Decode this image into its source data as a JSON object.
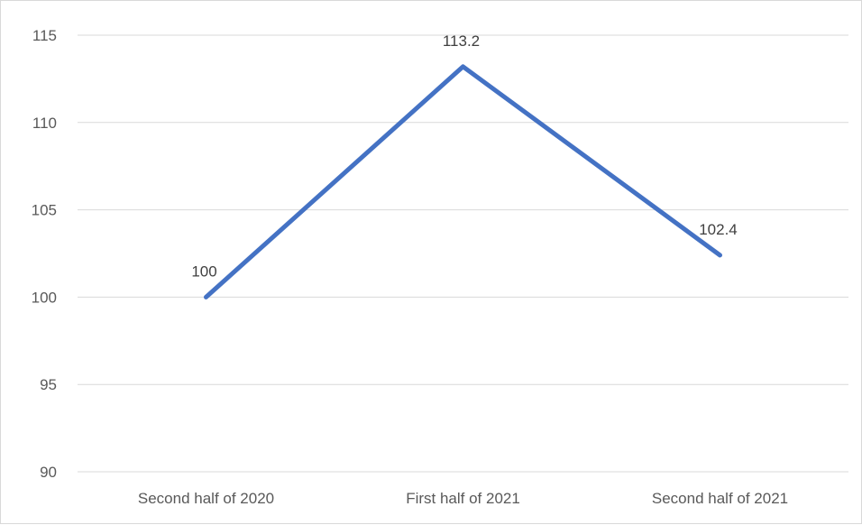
{
  "chart_data": {
    "type": "line",
    "title": "",
    "xlabel": "",
    "ylabel": "",
    "categories": [
      "Second half of 2020",
      "First half of 2021",
      "Second half of 2021"
    ],
    "series": [
      {
        "values": [
          100,
          113.2,
          102.4
        ],
        "color": "#4472c4"
      }
    ],
    "data_labels": [
      "100",
      "113.2",
      "102.4"
    ],
    "yticks": [
      90,
      95,
      100,
      105,
      110,
      115
    ],
    "ylim": [
      90,
      115
    ],
    "grid": true,
    "legend": "none"
  }
}
